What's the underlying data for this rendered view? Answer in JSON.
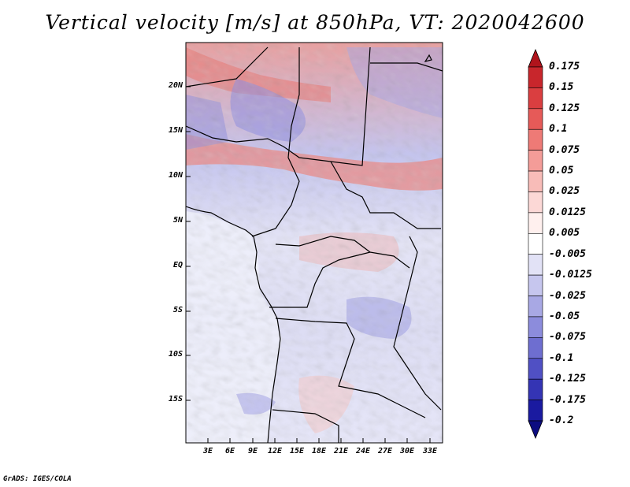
{
  "title": "Vertical velocity [m/s] at 850hPa, VT: 2020042600",
  "footer": "GrADS: IGES/COLA",
  "map": {
    "lat_labels": [
      "20N",
      "15N",
      "10N",
      "5N",
      "EQ",
      "5S",
      "10S",
      "15S"
    ],
    "lon_labels": [
      "3E",
      "6E",
      "9E",
      "12E",
      "15E",
      "18E",
      "21E",
      "24E",
      "27E",
      "30E",
      "33E"
    ]
  },
  "colorbar": {
    "labels": [
      "0.175",
      "0.15",
      "0.125",
      "0.1",
      "0.075",
      "0.05",
      "0.025",
      "0.0125",
      "0.005",
      "-0.005",
      "-0.0125",
      "-0.025",
      "-0.05",
      "-0.075",
      "-0.1",
      "-0.125",
      "-0.175",
      "-0.2"
    ],
    "colors": [
      "#b0141c",
      "#c8262c",
      "#da3e40",
      "#e65a58",
      "#ee7a76",
      "#f49c98",
      "#f8bcb8",
      "#fcd8d6",
      "#fff0ee",
      "#ffffff",
      "#e2e2f6",
      "#c6c6ee",
      "#a8a8e4",
      "#8c8cdc",
      "#6e6ed0",
      "#5050c4",
      "#3434b4",
      "#1a1aa0",
      "#0c0c80"
    ]
  }
}
